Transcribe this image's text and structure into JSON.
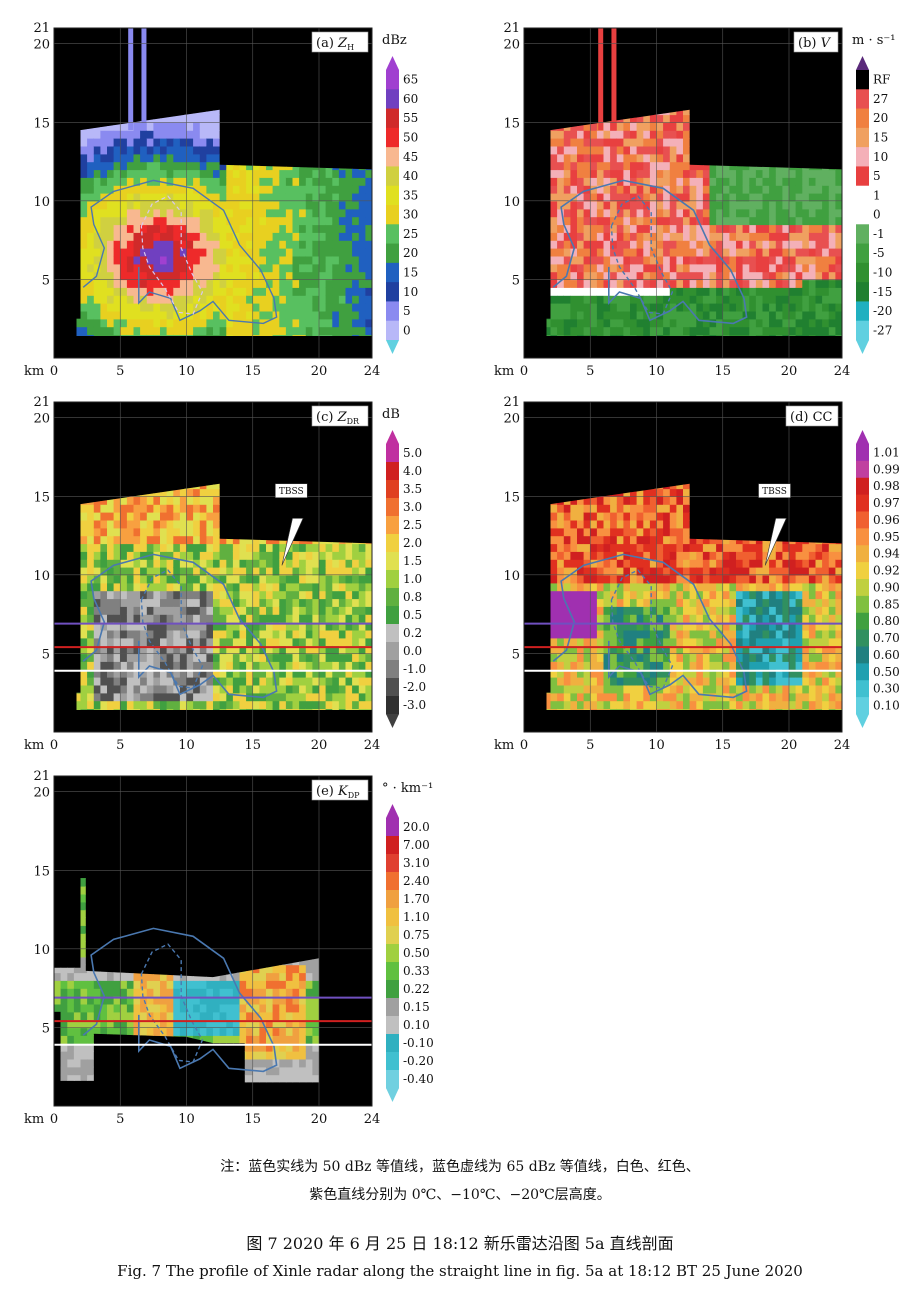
{
  "axes": {
    "x_ticks": [
      "0",
      "5",
      "10",
      "15",
      "20",
      "24"
    ],
    "y_ticks": [
      "21",
      "20",
      "15",
      "10",
      "5"
    ],
    "x_unit": "km",
    "xlim": [
      0,
      24
    ],
    "ylim": [
      0,
      21
    ]
  },
  "panels": [
    {
      "tag": "(a)",
      "var": "Z",
      "sub": "H",
      "unit": "dBz",
      "has_tbss": false,
      "has_lines": false,
      "scale": [
        "65",
        "60",
        "55",
        "50",
        "45",
        "40",
        "35",
        "30",
        "25",
        "20",
        "15",
        "10",
        "5",
        "0"
      ],
      "colors": [
        "#a040d0",
        "#7040c0",
        "#d02a2a",
        "#ee2a2a",
        "#f8b890",
        "#d0d040",
        "#e0e020",
        "#e8d020",
        "#58c060",
        "#40a040",
        "#2060c0",
        "#2040a0",
        "#8a8af0",
        "#b8b8f8"
      ],
      "top_cap": "#a040d0",
      "bottom_cap": "#60d0e0"
    },
    {
      "tag": "(b)",
      "var": "V",
      "sub": "",
      "unit": "m · s⁻¹",
      "has_tbss": false,
      "has_lines": false,
      "scale": [
        "RF",
        "27",
        "20",
        "15",
        "10",
        "5",
        "1",
        "0",
        "-1",
        "-5",
        "-10",
        "-15",
        "-20",
        "-27"
      ],
      "colors": [
        "#000000",
        "#e85050",
        "#f08040",
        "#f0a060",
        "#f4b0b8",
        "#e84040",
        "#ffffff",
        "#ffffff",
        "#60b060",
        "#40a040",
        "#309030",
        "#208030",
        "#20b0c0",
        "#60d0e0"
      ],
      "top_cap": "#5a2a7a",
      "bottom_cap": "#60d0e0"
    },
    {
      "tag": "(c)",
      "var": "Z",
      "sub": "DR",
      "unit": "dB",
      "has_tbss": true,
      "has_lines": true,
      "scale": [
        "5.0",
        "4.0",
        "3.5",
        "3.0",
        "2.5",
        "2.0",
        "1.5",
        "1.0",
        "0.8",
        "0.5",
        "0.2",
        "0.0",
        "-1.0",
        "-2.0",
        "-3.0"
      ],
      "colors": [
        "#c030a0",
        "#d02020",
        "#e04020",
        "#f07030",
        "#f8a040",
        "#f0d040",
        "#e0e050",
        "#a0d040",
        "#60b040",
        "#40a040",
        "#c0c0c0",
        "#a0a0a0",
        "#808080",
        "#505050",
        "#303030"
      ],
      "top_cap": "#c030a0",
      "bottom_cap": "#404040"
    },
    {
      "tag": "(d)",
      "var": "CC",
      "sub": "",
      "unit": "",
      "has_tbss": true,
      "has_lines": true,
      "scale": [
        "1.01",
        "0.99",
        "0.98",
        "0.97",
        "0.96",
        "0.95",
        "0.94",
        "0.92",
        "0.90",
        "0.85",
        "0.80",
        "0.70",
        "0.60",
        "0.50",
        "0.30",
        "0.10"
      ],
      "colors": [
        "#a030b0",
        "#c040a0",
        "#d02020",
        "#e03020",
        "#f06030",
        "#f89040",
        "#f0b040",
        "#f0d040",
        "#c0d040",
        "#80c040",
        "#40a040",
        "#309060",
        "#208080",
        "#20a0b0",
        "#40c0d0",
        "#60d0e0"
      ],
      "top_cap": "#a030b0",
      "bottom_cap": "#60d0e0"
    },
    {
      "tag": "(e)",
      "var": "K",
      "sub": "DP",
      "unit": "° · km⁻¹",
      "has_tbss": false,
      "has_lines": true,
      "scale": [
        "20.0",
        "7.00",
        "3.10",
        "2.40",
        "1.70",
        "1.10",
        "0.75",
        "0.50",
        "0.33",
        "0.22",
        "0.15",
        "0.10",
        "-0.10",
        "-0.20",
        "-0.40"
      ],
      "colors": [
        "#a030b0",
        "#d02020",
        "#e04030",
        "#f07030",
        "#f0a040",
        "#f0c040",
        "#e0d050",
        "#a0d040",
        "#60c040",
        "#40a040",
        "#a0a0a0",
        "#c0c0c0",
        "#30b0c0",
        "#40c0d0",
        "#70d0e0"
      ],
      "top_cap": "#a030b0",
      "bottom_cap": "#70d0e0"
    }
  ],
  "tbss_label": "TBSS",
  "note_line1": "注：蓝色实线为 50 dBz 等值线，蓝色虚线为 65 dBz 等值线，白色、红色、",
  "note_line2": "紫色直线分别为 0℃、−10℃、−20℃层高度。",
  "caption_cn": "图 7   2020 年 6 月 25 日 18:12 新乐雷达沿图 5a 直线剖面",
  "caption_en": "Fig. 7   The profile of Xinle radar along the straight line in fig. 5a at 18:12 BT 25 June 2020",
  "line_colors": {
    "t0": "#ffffff",
    "t10": "#d02020",
    "t20": "#7050c0",
    "c50": "#4a78b0"
  },
  "level_heights_km": {
    "t0": 3.9,
    "t10": 5.4,
    "t20": 6.9
  }
}
